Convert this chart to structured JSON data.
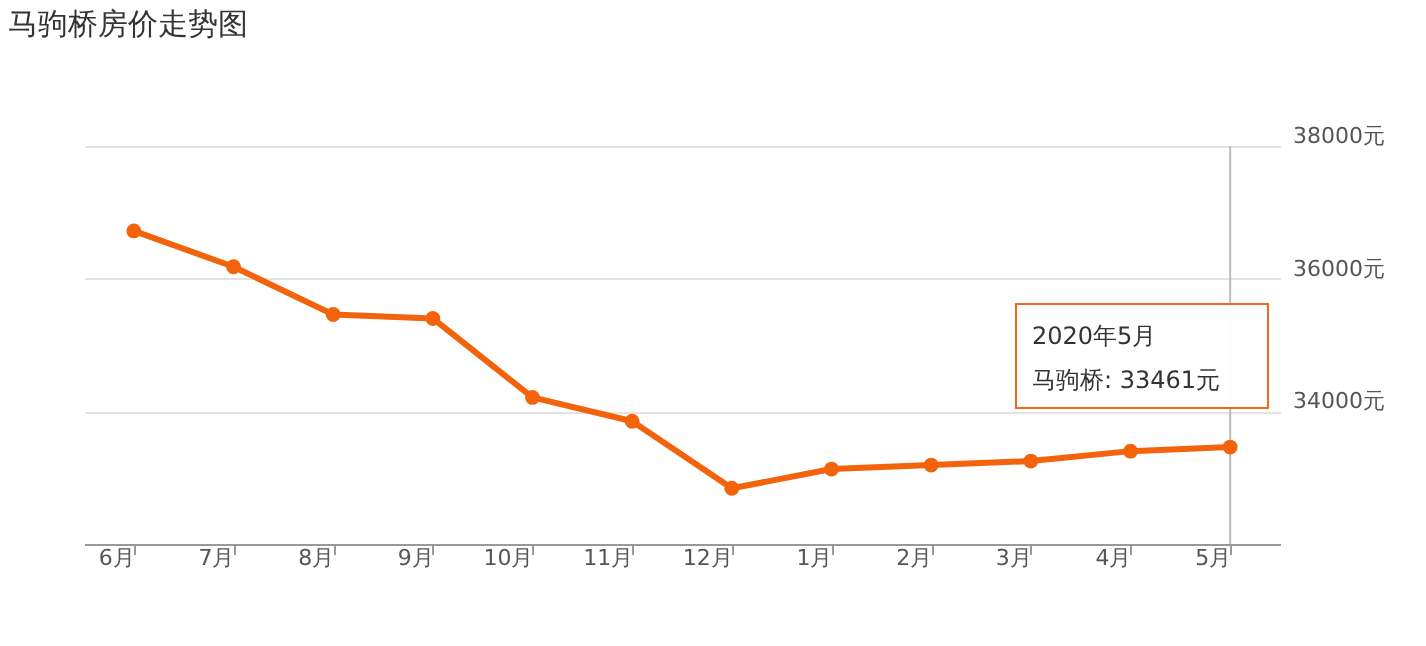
{
  "chart_data": {
    "type": "line",
    "title": "马驹桥房价走势图",
    "categories": [
      "6月",
      "7月",
      "8月",
      "9月",
      "10月",
      "11月",
      "12月",
      "1月",
      "2月",
      "3月",
      "4月",
      "5月"
    ],
    "series": [
      {
        "color": "#f2630c",
        "values": [
          36720,
          36180,
          35460,
          35400,
          34210,
          33850,
          32840,
          33130,
          33190,
          33250,
          33400,
          33461
        ]
      }
    ],
    "ylim": [
      32000,
      38000
    ],
    "yticks": [
      {
        "value": 32000,
        "label": null
      },
      {
        "value": 34000,
        "label": "34000元"
      },
      {
        "value": 36000,
        "label": "36000元"
      },
      {
        "value": 38000,
        "label": "38000元"
      }
    ],
    "grid": "y",
    "marker": "circle",
    "line_style": "solid",
    "ref_lines": [
      {
        "axis": "x",
        "value": "5月",
        "color": "#bbbbbb"
      }
    ],
    "annotations": [
      "2020年5月",
      "马驹桥: 33461元"
    ]
  }
}
